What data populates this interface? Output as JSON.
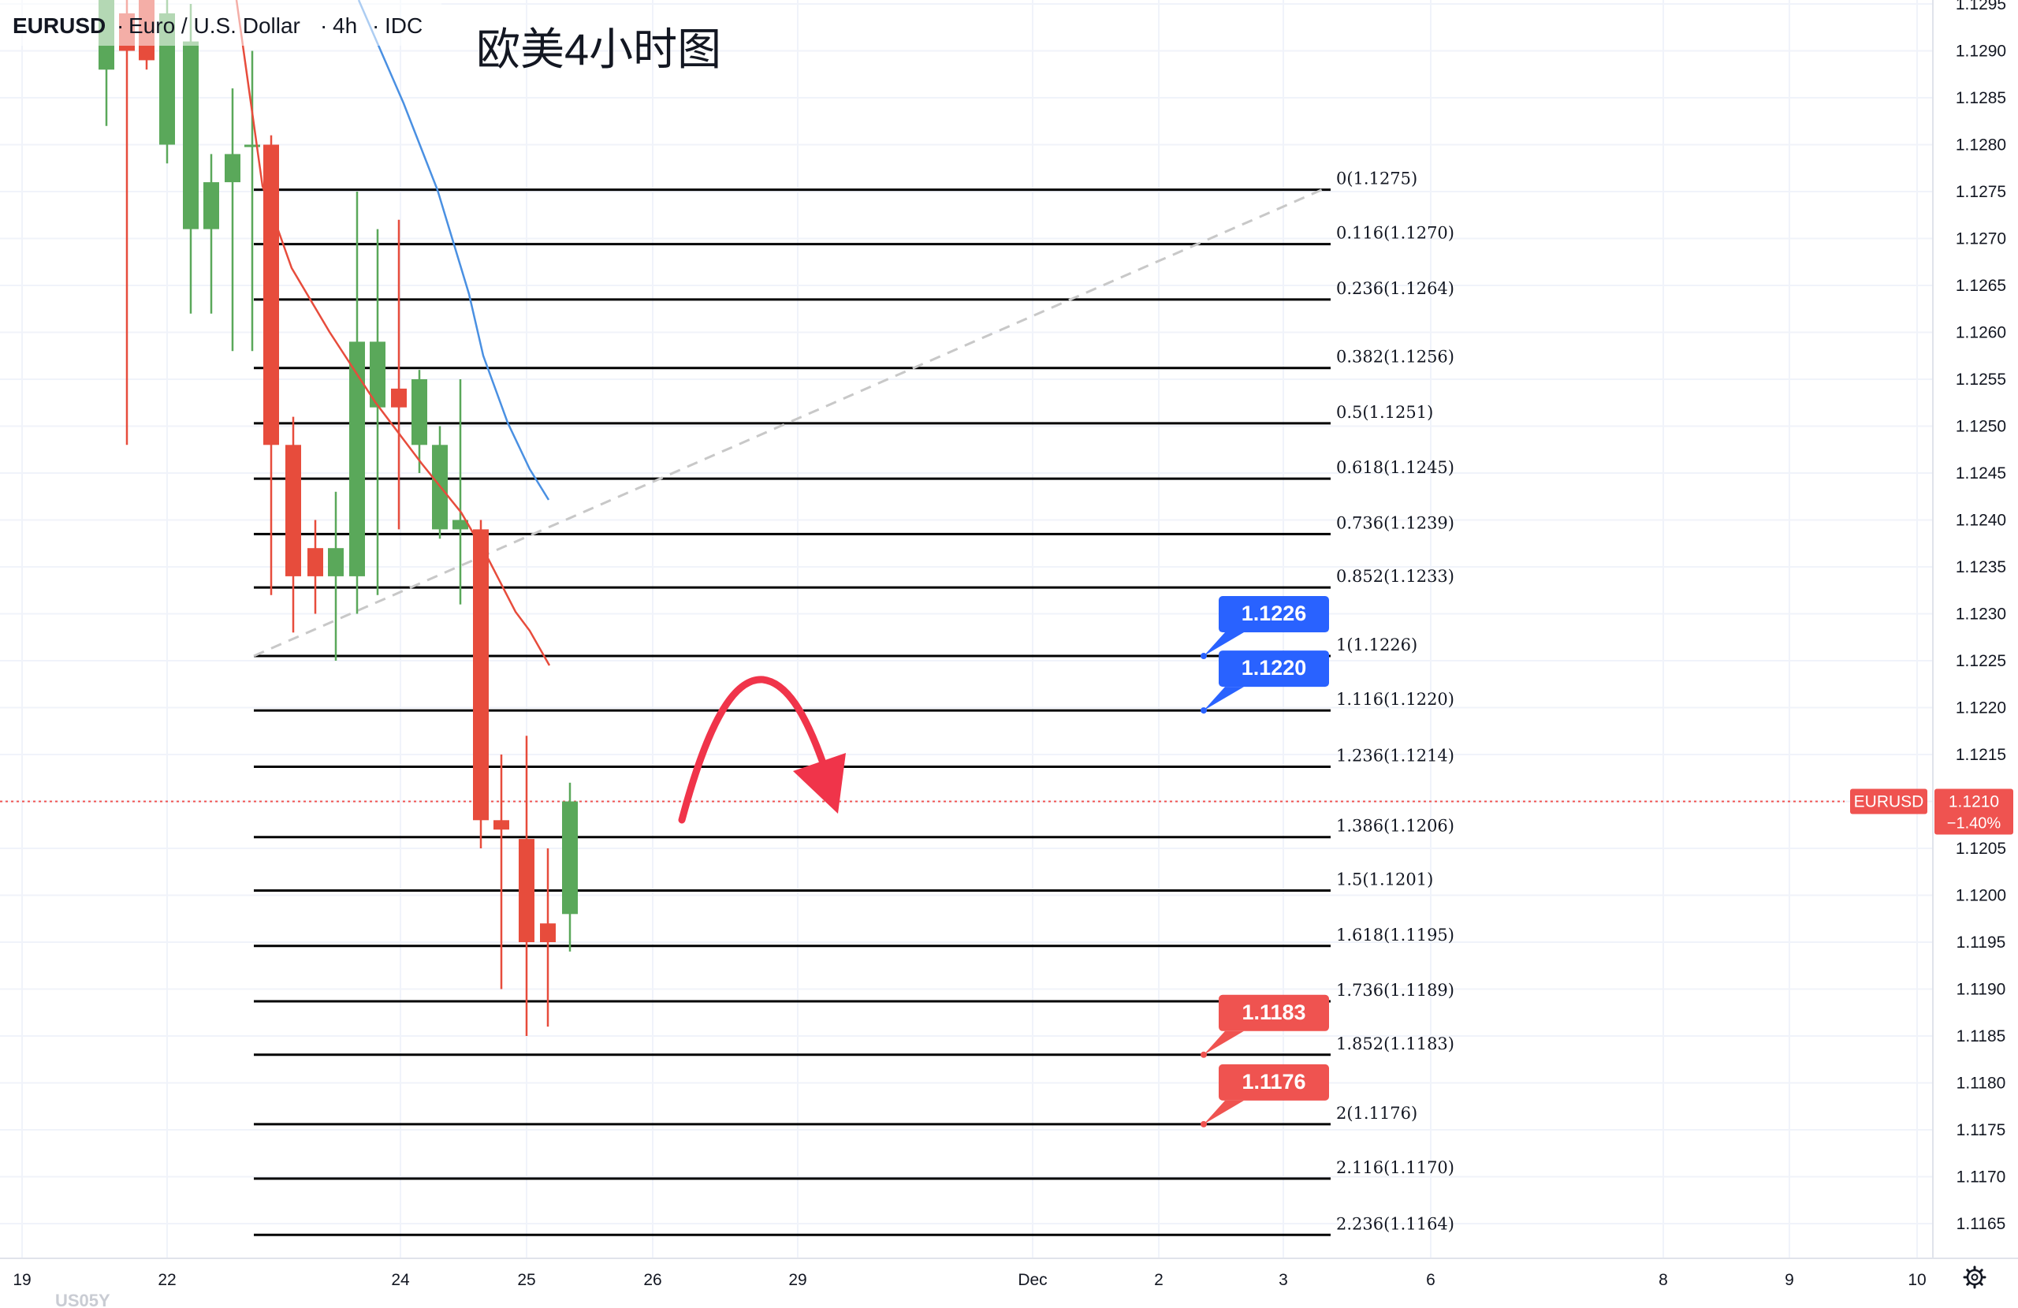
{
  "header": {
    "symbol": "EURUSD",
    "name": "Euro / U.S. Dollar",
    "interval": "4h",
    "source": "IDC",
    "annotation": "欧美4小时图"
  },
  "price_axis": {
    "ticks": [
      "1.1295",
      "1.1290",
      "1.1285",
      "1.1280",
      "1.1275",
      "1.1270",
      "1.1265",
      "1.1260",
      "1.1255",
      "1.1250",
      "1.1245",
      "1.1240",
      "1.1235",
      "1.1230",
      "1.1225",
      "1.1220",
      "1.1215",
      "1.1205",
      "1.1200",
      "1.1195",
      "1.1190",
      "1.1185",
      "1.1180",
      "1.1175",
      "1.1170",
      "1.1165"
    ],
    "current_label": "EURUSD",
    "current_price": "1.1210",
    "current_change": "−1.40%"
  },
  "time_axis": {
    "ticks": [
      "19",
      "22",
      "24",
      "25",
      "26",
      "29",
      "Dec",
      "2",
      "3",
      "6",
      "8",
      "9",
      "10"
    ],
    "partial_label": "US05Y"
  },
  "fib_levels": [
    {
      "label": "0(1.1275)",
      "price": 1.12752
    },
    {
      "label": "0.116(1.1270)",
      "price": 1.12694
    },
    {
      "label": "0.236(1.1264)",
      "price": 1.12635
    },
    {
      "label": "0.382(1.1256)",
      "price": 1.12562
    },
    {
      "label": "0.5(1.1251)",
      "price": 1.12503
    },
    {
      "label": "0.618(1.1245)",
      "price": 1.12444
    },
    {
      "label": "0.736(1.1239)",
      "price": 1.12385
    },
    {
      "label": "0.852(1.1233)",
      "price": 1.12328
    },
    {
      "label": "1(1.1226)",
      "price": 1.12255
    },
    {
      "label": "1.116(1.1220)",
      "price": 1.12197
    },
    {
      "label": "1.236(1.1214)",
      "price": 1.12137
    },
    {
      "label": "1.386(1.1206)",
      "price": 1.12062
    },
    {
      "label": "1.5(1.1201)",
      "price": 1.12005
    },
    {
      "label": "1.618(1.1195)",
      "price": 1.11946
    },
    {
      "label": "1.736(1.1189)",
      "price": 1.11887
    },
    {
      "label": "1.852(1.1183)",
      "price": 1.1183
    },
    {
      "label": "2(1.1176)",
      "price": 1.11756
    },
    {
      "label": "2.116(1.1170)",
      "price": 1.11698
    },
    {
      "label": "2.236(1.1164)",
      "price": 1.11638
    }
  ],
  "callouts": [
    {
      "text": "1.1226",
      "price": 1.12255,
      "color": "#2962ff"
    },
    {
      "text": "1.1220",
      "price": 1.12197,
      "color": "#2962ff"
    },
    {
      "text": "1.1183",
      "price": 1.1183,
      "color": "#ef5350"
    },
    {
      "text": "1.1176",
      "price": 1.11756,
      "color": "#ef5350"
    }
  ],
  "colors": {
    "up": "#5aa85a",
    "down": "#e74c3c",
    "ma_blue": "#4a90e2",
    "ma_red": "#e74c3c",
    "fib": "#000000",
    "arrow": "#f0344a",
    "trend": "#c8c8c8"
  },
  "chart_data": {
    "type": "candlestick",
    "title": "EURUSD Euro / U.S. Dollar 4h IDC",
    "ylim": [
      1.1163,
      1.12965
    ],
    "x_categories": [
      "19",
      "22",
      "24",
      "25",
      "26",
      "29",
      "Dec",
      "2",
      "3",
      "6",
      "8",
      "9",
      "10"
    ],
    "candles": [
      {
        "t": "c01",
        "o": 1.1288,
        "h": 1.1299,
        "l": 1.1282,
        "c": 1.1296
      },
      {
        "t": "c02",
        "o": 1.1294,
        "h": 1.131,
        "l": 1.1248,
        "c": 1.129
      },
      {
        "t": "c03",
        "o": 1.1299,
        "h": 1.1312,
        "l": 1.1288,
        "c": 1.1289
      },
      {
        "t": "c04",
        "o": 1.128,
        "h": 1.1298,
        "l": 1.1278,
        "c": 1.1294
      },
      {
        "t": "c05",
        "o": 1.1271,
        "h": 1.1295,
        "l": 1.1262,
        "c": 1.1291
      },
      {
        "t": "c06",
        "o": 1.1271,
        "h": 1.1279,
        "l": 1.1262,
        "c": 1.1276
      },
      {
        "t": "c07",
        "o": 1.1276,
        "h": 1.1286,
        "l": 1.1258,
        "c": 1.1279
      },
      {
        "t": "c08",
        "o": 1.128,
        "h": 1.129,
        "l": 1.1258,
        "c": 1.128
      },
      {
        "t": "c09",
        "o": 1.128,
        "h": 1.1281,
        "l": 1.1232,
        "c": 1.1248
      },
      {
        "t": "c10",
        "o": 1.1248,
        "h": 1.1251,
        "l": 1.1228,
        "c": 1.1234
      },
      {
        "t": "c11",
        "o": 1.1237,
        "h": 1.124,
        "l": 1.123,
        "c": 1.1234
      },
      {
        "t": "c12",
        "o": 1.1234,
        "h": 1.1243,
        "l": 1.1225,
        "c": 1.1237
      },
      {
        "t": "c13",
        "o": 1.1234,
        "h": 1.1275,
        "l": 1.123,
        "c": 1.1259
      },
      {
        "t": "c14",
        "o": 1.1252,
        "h": 1.1271,
        "l": 1.1232,
        "c": 1.1259
      },
      {
        "t": "c15",
        "o": 1.1254,
        "h": 1.1272,
        "l": 1.1239,
        "c": 1.1252
      },
      {
        "t": "c16",
        "o": 1.1248,
        "h": 1.1256,
        "l": 1.1245,
        "c": 1.1255
      },
      {
        "t": "c17",
        "o": 1.1239,
        "h": 1.125,
        "l": 1.1238,
        "c": 1.1248
      },
      {
        "t": "c18",
        "o": 1.1239,
        "h": 1.1255,
        "l": 1.1231,
        "c": 1.124
      },
      {
        "t": "c19",
        "o": 1.1239,
        "h": 1.124,
        "l": 1.1205,
        "c": 1.1208
      },
      {
        "t": "c20",
        "o": 1.1208,
        "h": 1.1215,
        "l": 1.119,
        "c": 1.1207
      },
      {
        "t": "c21",
        "o": 1.1206,
        "h": 1.1217,
        "l": 1.1185,
        "c": 1.1195
      },
      {
        "t": "c22",
        "o": 1.1197,
        "h": 1.1205,
        "l": 1.1186,
        "c": 1.1195
      },
      {
        "t": "c23",
        "o": 1.1198,
        "h": 1.1212,
        "l": 1.1194,
        "c": 1.121
      }
    ],
    "ma_blue": [
      [
        1.1297,
        0
      ],
      [
        1.1288,
        0
      ],
      [
        1.1276,
        0
      ],
      [
        1.1261,
        0
      ],
      [
        1.1248,
        0
      ],
      [
        1.1244,
        0
      ]
    ],
    "ma_red": [
      [
        1.1297,
        0
      ],
      [
        1.128,
        0
      ],
      [
        1.1266,
        0
      ],
      [
        1.1253,
        0
      ],
      [
        1.1241,
        0
      ],
      [
        1.1232,
        0
      ],
      [
        1.1226,
        0
      ]
    ]
  }
}
